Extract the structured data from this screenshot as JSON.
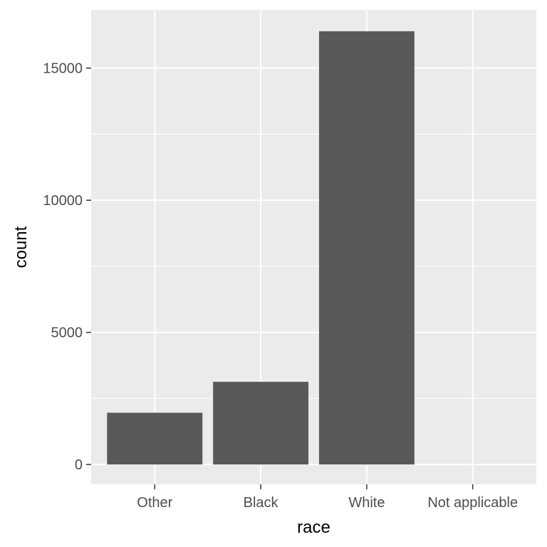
{
  "chart_data": {
    "type": "bar",
    "categories": [
      "Other",
      "Black",
      "White",
      "Not applicable"
    ],
    "values": [
      1959,
      3129,
      16395,
      0
    ],
    "xlabel": "race",
    "ylabel": "count",
    "ylim": [
      -750,
      17200
    ],
    "yticks": [
      0,
      5000,
      10000,
      15000
    ],
    "ytick_labels": [
      "0",
      "5000",
      "10000",
      "15000"
    ],
    "grid": true,
    "colors": {
      "panel": "#EBEBEB",
      "grid": "#FFFFFF",
      "bar": "#595959",
      "tick": "#333333",
      "label": "#4D4D4D"
    }
  }
}
